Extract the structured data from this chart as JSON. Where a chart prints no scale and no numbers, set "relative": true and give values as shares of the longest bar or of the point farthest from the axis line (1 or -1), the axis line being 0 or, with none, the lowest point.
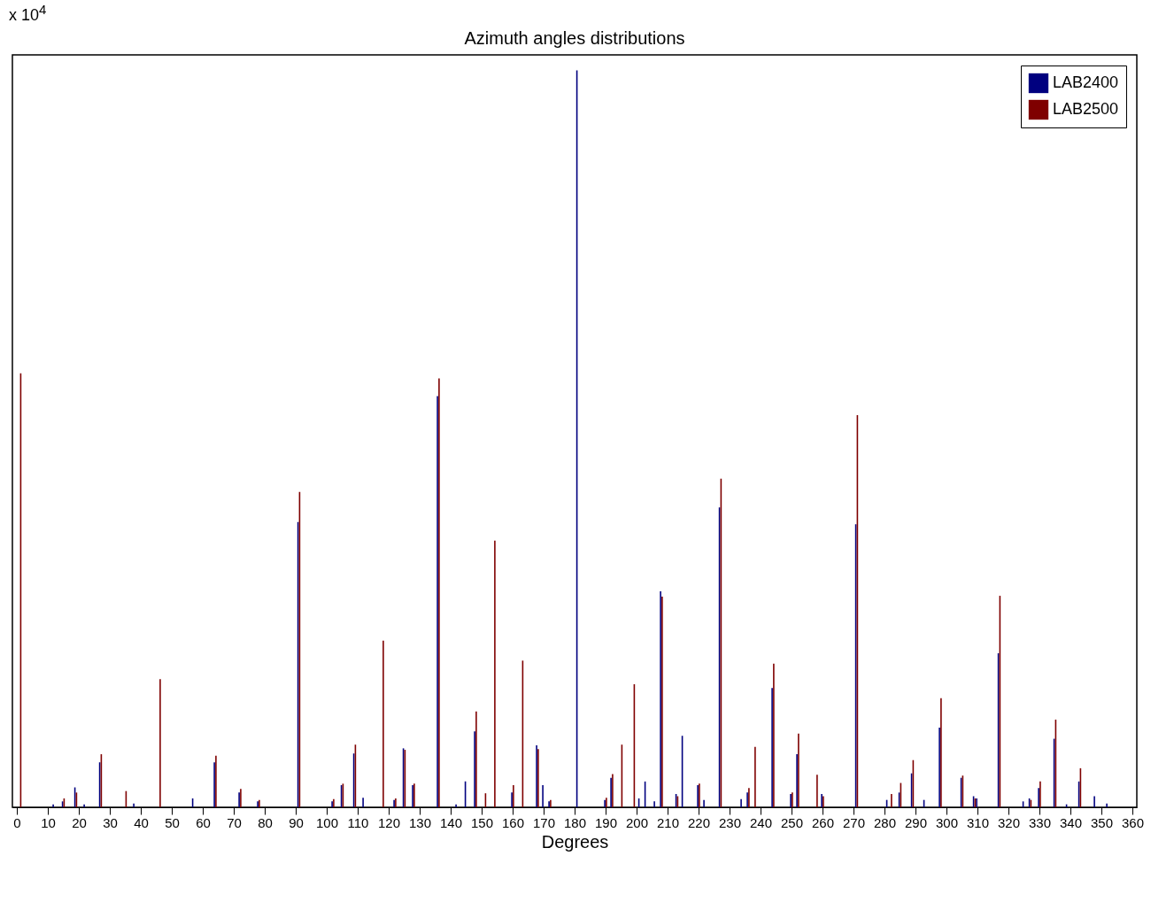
{
  "chart_data": {
    "type": "bar",
    "title": "Azimuth angles distributions",
    "xlabel": "Degrees",
    "annotations": [
      "x 10$^{4}$"
    ],
    "relative": true,
    "legend": "top right",
    "grid": false,
    "x": [
      1,
      12,
      15,
      19,
      22,
      27,
      35,
      38,
      46,
      57,
      64,
      72,
      78,
      91,
      102,
      105,
      109,
      112,
      118,
      122,
      125,
      128,
      136,
      142,
      145,
      148,
      151,
      154,
      160,
      163,
      168,
      170,
      172,
      181,
      190,
      192,
      195,
      199,
      201,
      203,
      206,
      208,
      213,
      215,
      220,
      222,
      227,
      234,
      236,
      238,
      244,
      250,
      252,
      258,
      260,
      271,
      281,
      282,
      285,
      289,
      293,
      298,
      305,
      309,
      310,
      317,
      325,
      327,
      330,
      335,
      339,
      343,
      348,
      352
    ],
    "xlim": [
      0,
      360
    ],
    "xticks": [
      0,
      10,
      20,
      30,
      40,
      50,
      60,
      70,
      80,
      90,
      100,
      110,
      120,
      130,
      140,
      150,
      160,
      170,
      180,
      190,
      200,
      210,
      220,
      230,
      240,
      250,
      260,
      270,
      280,
      290,
      300,
      310,
      320,
      330,
      340,
      350,
      360
    ],
    "series": [
      {
        "name": "LAB2400",
        "color": "#00007f",
        "values": [
          null,
          0.004,
          0.008,
          0.027,
          0.004,
          0.061,
          null,
          0.005,
          null,
          0.012,
          0.061,
          0.02,
          0.008,
          0.387,
          0.008,
          0.03,
          0.073,
          0.013,
          null,
          0.01,
          0.08,
          0.03,
          0.558,
          0.004,
          0.035,
          0.103,
          null,
          null,
          0.02,
          null,
          0.084,
          0.03,
          0.008,
          1.0,
          0.01,
          0.04,
          null,
          null,
          0.012,
          0.035,
          0.008,
          0.293,
          0.018,
          0.097,
          0.03,
          0.01,
          0.407,
          0.011,
          0.02,
          null,
          0.162,
          0.018,
          0.072,
          null,
          0.018,
          0.384,
          0.01,
          null,
          0.02,
          0.046,
          0.01,
          0.108,
          0.04,
          0.015,
          0.012,
          0.209,
          0.008,
          0.012,
          0.026,
          0.093,
          0.004,
          0.035,
          0.015,
          0.005
        ]
      },
      {
        "name": "LAB2500",
        "color": "#7f0000",
        "values": [
          0.589,
          null,
          0.012,
          0.02,
          null,
          0.072,
          0.022,
          null,
          0.174,
          null,
          0.07,
          0.025,
          0.01,
          0.428,
          0.011,
          0.032,
          0.085,
          null,
          0.226,
          0.012,
          0.078,
          0.032,
          0.582,
          null,
          null,
          0.13,
          0.019,
          0.362,
          0.03,
          0.199,
          0.079,
          null,
          0.01,
          null,
          0.013,
          0.045,
          0.085,
          0.167,
          null,
          null,
          null,
          0.286,
          0.015,
          null,
          0.032,
          null,
          0.446,
          null,
          0.026,
          0.082,
          0.195,
          0.02,
          0.1,
          0.044,
          0.015,
          0.532,
          null,
          0.018,
          0.033,
          0.064,
          null,
          0.148,
          0.043,
          0.012,
          null,
          0.287,
          null,
          0.01,
          0.035,
          0.119,
          null,
          0.053,
          null,
          null
        ]
      }
    ]
  }
}
